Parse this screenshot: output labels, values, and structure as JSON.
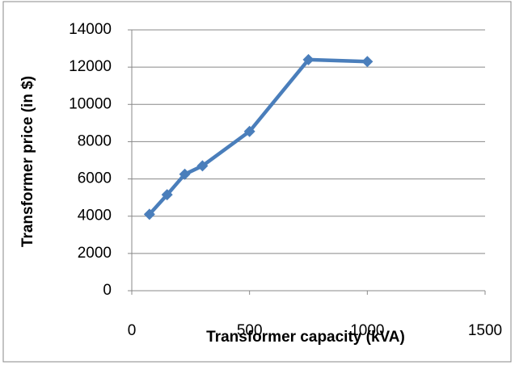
{
  "chart_data": {
    "type": "line",
    "x_label": "Transformer capacity (kVA)",
    "y_label": "Transformer price (in $)",
    "x": [
      75,
      150,
      225,
      300,
      500,
      750,
      1000
    ],
    "series": [
      {
        "color": "#4a7ebb",
        "values": [
          4100,
          5150,
          6250,
          6700,
          8550,
          12400,
          12300
        ]
      }
    ],
    "xlim": [
      0,
      1500
    ],
    "xticks": [
      0,
      500,
      1000,
      1500
    ],
    "ylim": [
      0,
      14000
    ],
    "yticks": [
      0,
      2000,
      4000,
      6000,
      8000,
      10000,
      12000,
      14000
    ],
    "grid": true
  }
}
